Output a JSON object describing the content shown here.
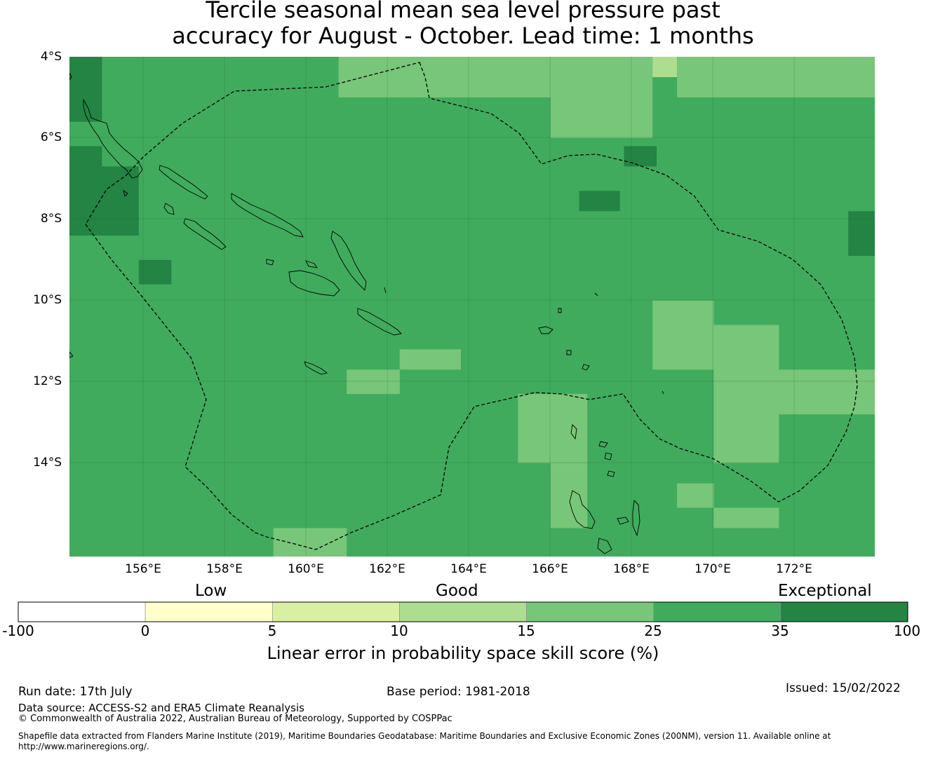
{
  "title": {
    "line1": "Tercile seasonal mean sea level pressure past",
    "line2": "accuracy for August - October. Lead time: 1 months"
  },
  "map": {
    "lon_range": [
      154.2,
      173.95
    ],
    "lat_range": [
      -4,
      -16.3
    ],
    "lat_ticks": [
      "4°S",
      "6°S",
      "8°S",
      "10°S",
      "12°S",
      "14°S"
    ],
    "lon_ticks": [
      "156°E",
      "158°E",
      "160°E",
      "162°E",
      "164°E",
      "166°E",
      "168°E",
      "170°E",
      "172°E"
    ],
    "base_color": "#41ab5d",
    "eez_boundary": "dashed",
    "grid_cells_skill_category": [
      {
        "lon": [
          154.2,
          155.0
        ],
        "lat": [
          -4.0,
          -5.6
        ],
        "category": "35-100"
      },
      {
        "lon": [
          154.2,
          155.0
        ],
        "lat": [
          -6.2,
          -8.4
        ],
        "category": "35-100"
      },
      {
        "lon": [
          155.0,
          155.9
        ],
        "lat": [
          -6.7,
          -8.4
        ],
        "category": "35-100"
      },
      {
        "lon": [
          155.9,
          156.7
        ],
        "lat": [
          -9.0,
          -9.6
        ],
        "category": "35-100"
      },
      {
        "lon": [
          160.8,
          162.5
        ],
        "lat": [
          -4.0,
          -5.0
        ],
        "category": "15-25"
      },
      {
        "lon": [
          162.5,
          166.0
        ],
        "lat": [
          -4.0,
          -5.0
        ],
        "category": "15-25"
      },
      {
        "lon": [
          166.0,
          168.5
        ],
        "lat": [
          -4.0,
          -6.0
        ],
        "category": "15-25"
      },
      {
        "lon": [
          168.5,
          169.1
        ],
        "lat": [
          -4.0,
          -4.5
        ],
        "category": "10-15"
      },
      {
        "lon": [
          169.1,
          173.95
        ],
        "lat": [
          -4.0,
          -5.0
        ],
        "category": "15-25"
      },
      {
        "lon": [
          167.8,
          168.6
        ],
        "lat": [
          -6.2,
          -6.7
        ],
        "category": "35-100"
      },
      {
        "lon": [
          166.7,
          167.7
        ],
        "lat": [
          -7.3,
          -7.8
        ],
        "category": "35-100"
      },
      {
        "lon": [
          173.3,
          173.95
        ],
        "lat": [
          -7.8,
          -8.9
        ],
        "category": "35-100"
      },
      {
        "lon": [
          168.5,
          170.0
        ],
        "lat": [
          -10.0,
          -11.7
        ],
        "category": "15-25"
      },
      {
        "lon": [
          170.0,
          171.6
        ],
        "lat": [
          -10.6,
          -14.0
        ],
        "category": "15-25"
      },
      {
        "lon": [
          171.6,
          173.95
        ],
        "lat": [
          -11.7,
          -12.8
        ],
        "category": "15-25"
      },
      {
        "lon": [
          162.3,
          163.8
        ],
        "lat": [
          -11.2,
          -11.7
        ],
        "category": "15-25"
      },
      {
        "lon": [
          161.0,
          162.3
        ],
        "lat": [
          -11.7,
          -12.3
        ],
        "category": "15-25"
      },
      {
        "lon": [
          165.2,
          166.9
        ],
        "lat": [
          -12.3,
          -14.0
        ],
        "category": "15-25"
      },
      {
        "lon": [
          166.0,
          166.9
        ],
        "lat": [
          -14.0,
          -15.6
        ],
        "category": "15-25"
      },
      {
        "lon": [
          169.1,
          170.0
        ],
        "lat": [
          -14.5,
          -15.1
        ],
        "category": "15-25"
      },
      {
        "lon": [
          170.0,
          171.6
        ],
        "lat": [
          -15.1,
          -15.6
        ],
        "category": "15-25"
      },
      {
        "lon": [
          159.2,
          161.0
        ],
        "lat": [
          -15.6,
          -16.3
        ],
        "category": "15-25"
      }
    ]
  },
  "legend": {
    "category_labels": {
      "low": "Low",
      "good": "Good",
      "exceptional": "Exceptional"
    },
    "ticks": [
      "-100",
      "0",
      "5",
      "10",
      "15",
      "25",
      "35",
      "100"
    ],
    "colors": [
      "#ffffff",
      "#ffffcc",
      "#d9f0a3",
      "#addd8e",
      "#78c679",
      "#41ab5d",
      "#238443"
    ],
    "title": "Linear error in probability space skill score (%)"
  },
  "footer": {
    "run_date": "Run date: 17th July",
    "base_period": "Base period: 1981-2018",
    "issued": "Issued: 15/02/2022",
    "data_source": "Data source: ACCESS-S2 and ERA5 Climate Reanalysis",
    "copyright": "© Commonwealth of Australia 2022, Australian Bureau of Meteorology, Supported by COSPPac",
    "shapefile": "Shapefile data extracted from Flanders Marine Institute (2019), Maritime Boundaries Geodatabase: Maritime Boundaries and Exclusive Economic Zones (200NM), version 11. Available online at http://www.marineregions.org/."
  }
}
